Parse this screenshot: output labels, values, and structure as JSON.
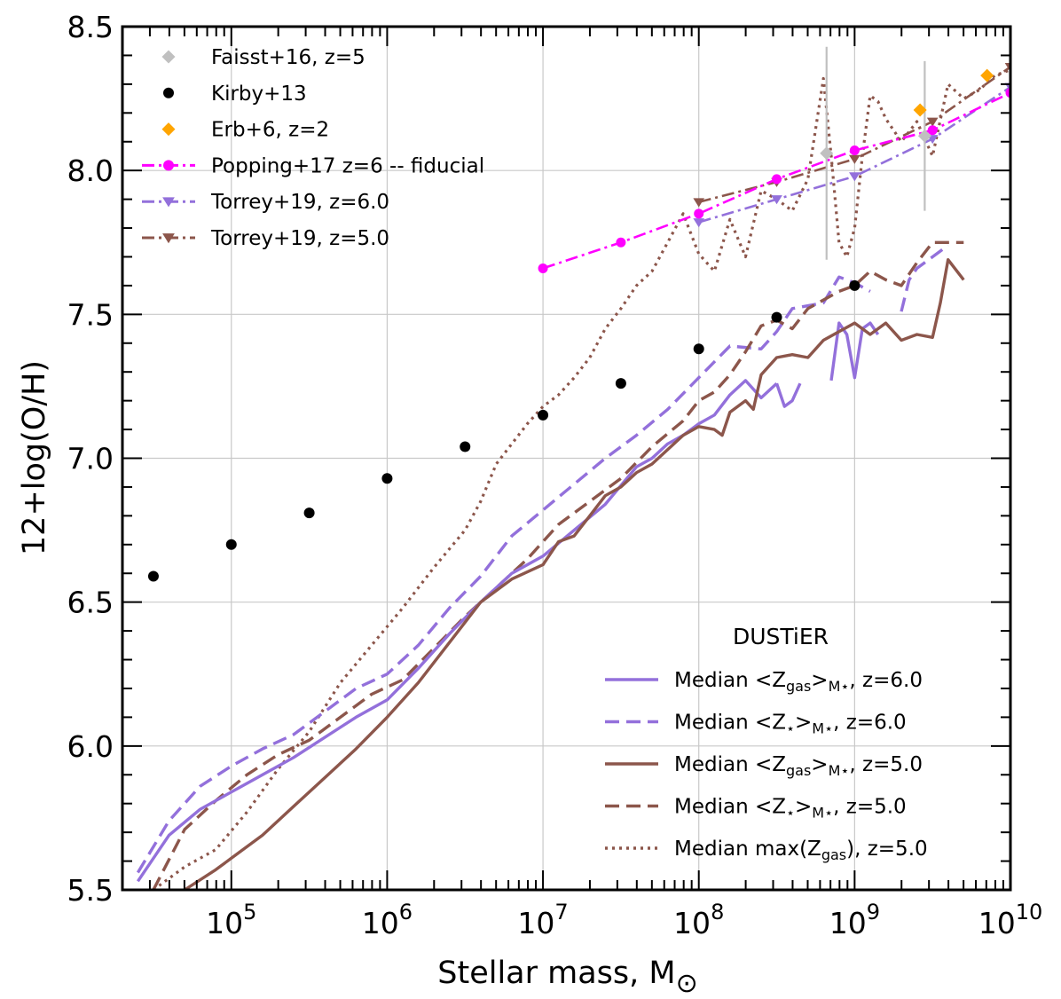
{
  "chart_data": {
    "type": "line",
    "title": "",
    "xlabel": "Stellar mass, M",
    "xlabel_sub": "⊙",
    "ylabel": "12+log(O/H)",
    "xscale": "log",
    "xlim": [
      20000,
      10000000000
    ],
    "ylim": [
      5.5,
      8.5
    ],
    "grid": true,
    "x_ticks": [
      {
        "value": 100000,
        "base": "10",
        "exp": "5"
      },
      {
        "value": 1000000,
        "base": "10",
        "exp": "6"
      },
      {
        "value": 10000000,
        "base": "10",
        "exp": "7"
      },
      {
        "value": 100000000,
        "base": "10",
        "exp": "8"
      },
      {
        "value": 1000000000,
        "base": "10",
        "exp": "9"
      },
      {
        "value": 10000000000,
        "base": "10",
        "exp": "10"
      }
    ],
    "y_ticks": [
      {
        "value": 5.5,
        "label": "5.5"
      },
      {
        "value": 6.0,
        "label": "6.0"
      },
      {
        "value": 6.5,
        "label": "6.5"
      },
      {
        "value": 7.0,
        "label": "7.0"
      },
      {
        "value": 7.5,
        "label": "7.5"
      },
      {
        "value": 8.0,
        "label": "8.0"
      },
      {
        "value": 8.5,
        "label": "8.5"
      }
    ],
    "legend_top": [
      {
        "label": "Faisst+16, z=5",
        "color": "#c0c0c0",
        "marker": "diamond",
        "line": "none"
      },
      {
        "label": "Kirby+13",
        "color": "#000000",
        "marker": "circle",
        "line": "none"
      },
      {
        "label": "Erb+6, z=2",
        "color": "#ffa500",
        "marker": "diamond",
        "line": "none"
      },
      {
        "label": "Popping+17 z=6 -- fiducial",
        "color": "#ff00ff",
        "marker": "circle",
        "line": "dashdot"
      },
      {
        "label": "Torrey+19, z=6.0",
        "color": "#9370db",
        "marker": "triangle-down",
        "line": "dashdot"
      },
      {
        "label": "Torrey+19, z=5.0",
        "color": "#8c564b",
        "marker": "triangle-down",
        "line": "dashdot"
      }
    ],
    "legend_bottom": {
      "title": "DUSTiER",
      "entries": [
        {
          "prefix": "Median <Z",
          "sub": "gas",
          "middle": ">",
          "sub2": "M⋆",
          "suffix": ", z=6.0",
          "color": "#9370db",
          "line": "solid"
        },
        {
          "prefix": "Median <Z",
          "sub": "⋆",
          "middle": ">",
          "sub2": "M⋆",
          "suffix": ", z=6.0",
          "color": "#9370db",
          "line": "dashed"
        },
        {
          "prefix": "Median <Z",
          "sub": "gas",
          "middle": ">",
          "sub2": "M⋆",
          "suffix": ", z=5.0",
          "color": "#8c564b",
          "line": "solid"
        },
        {
          "prefix": "Median <Z",
          "sub": "⋆",
          "middle": ">",
          "sub2": "M⋆",
          "suffix": ", z=5.0",
          "color": "#8c564b",
          "line": "dashed"
        },
        {
          "prefix": "Median max(Z",
          "sub": "gas",
          "middle": "),",
          "sub2": "",
          "suffix": "  z=5.0",
          "color": "#8c564b",
          "line": "dotted"
        }
      ]
    },
    "series": [
      {
        "name": "Kirby+13",
        "type": "scatter",
        "color": "#000000",
        "marker": "circle",
        "logx": [
          4.5,
          5.0,
          5.5,
          6.0,
          6.5,
          7.0,
          7.5,
          8.0,
          8.5,
          9.0
        ],
        "y": [
          6.59,
          6.7,
          6.81,
          6.93,
          7.04,
          7.15,
          7.26,
          7.38,
          7.49,
          7.6
        ]
      },
      {
        "name": "Faisst+16, z=5",
        "type": "scatter",
        "color": "#c0c0c0",
        "marker": "diamond",
        "logx": [
          8.82,
          9.45
        ],
        "y": [
          8.06,
          8.12
        ],
        "yerr": [
          0.37,
          0.26
        ]
      },
      {
        "name": "Erb+6, z=2",
        "type": "scatter",
        "color": "#ffa500",
        "marker": "diamond",
        "logx": [
          9.42,
          9.85
        ],
        "y": [
          8.21,
          8.33
        ]
      },
      {
        "name": "Popping+17 z=6 -- fiducial",
        "type": "line",
        "color": "#ff00ff",
        "marker": "circle",
        "line": "dashdot",
        "logx": [
          7.0,
          7.5,
          8.0,
          8.5,
          9.0,
          9.5,
          10.0
        ],
        "y": [
          7.66,
          7.75,
          7.85,
          7.97,
          8.07,
          8.14,
          8.27
        ]
      },
      {
        "name": "Torrey+19, z=6.0",
        "type": "line",
        "color": "#9370db",
        "marker": "triangle-down",
        "line": "dashdot",
        "logx": [
          8.0,
          8.5,
          9.0,
          9.5,
          10.0
        ],
        "y": [
          7.82,
          7.9,
          7.98,
          8.11,
          8.29
        ]
      },
      {
        "name": "Torrey+19, z=5.0",
        "type": "line",
        "color": "#8c564b",
        "marker": "triangle-down",
        "line": "dashdot",
        "logx": [
          8.0,
          8.5,
          9.0,
          9.5,
          10.0
        ],
        "y": [
          7.89,
          7.96,
          8.04,
          8.17,
          8.36
        ]
      },
      {
        "name": "Median <Zgas>M*, z=6.0",
        "type": "line",
        "color": "#9370db",
        "line": "solid",
        "segments": [
          {
            "logx": [
              4.4,
              4.6,
              4.8,
              5.0,
              5.2,
              5.4,
              5.6,
              5.8,
              6.0,
              6.2,
              6.4,
              6.6,
              6.8,
              7.0,
              7.2,
              7.4,
              7.6,
              7.7,
              7.8,
              7.9,
              8.0,
              8.1,
              8.2,
              8.3,
              8.4,
              8.5
            ],
            "y": [
              5.53,
              5.69,
              5.78,
              5.84,
              5.9,
              5.96,
              6.03,
              6.1,
              6.16,
              6.27,
              6.39,
              6.5,
              6.6,
              6.66,
              6.75,
              6.84,
              6.97,
              7.0,
              7.05,
              7.08,
              7.12,
              7.15,
              7.22,
              7.27,
              7.21,
              7.26
            ]
          },
          {
            "logx": [
              8.5,
              8.55,
              8.6,
              8.65
            ],
            "y": [
              7.26,
              7.18,
              7.2,
              7.26
            ]
          },
          {
            "logx": [
              8.85,
              8.9,
              8.95,
              9.0,
              9.05,
              9.1,
              9.15
            ],
            "y": [
              7.27,
              7.47,
              7.43,
              7.28,
              7.45,
              7.47,
              7.43
            ]
          }
        ]
      },
      {
        "name": "Median <Z*>M*, z=6.0",
        "type": "line",
        "color": "#9370db",
        "line": "dashed",
        "segments": [
          {
            "logx": [
              4.4,
              4.6,
              4.8,
              5.0,
              5.2,
              5.4,
              5.6,
              5.8,
              6.0,
              6.2,
              6.4,
              6.6,
              6.8,
              7.0,
              7.2,
              7.4,
              7.6,
              7.8,
              8.0,
              8.2,
              8.4,
              8.5,
              8.6,
              8.8,
              8.9,
              9.0,
              9.1
            ],
            "y": [
              5.56,
              5.74,
              5.86,
              5.93,
              5.99,
              6.04,
              6.12,
              6.2,
              6.25,
              6.35,
              6.48,
              6.59,
              6.73,
              6.82,
              6.91,
              7.0,
              7.08,
              7.17,
              7.28,
              7.39,
              7.38,
              7.44,
              7.52,
              7.54,
              7.63,
              7.61,
              7.58
            ]
          },
          {
            "logx": [
              9.3,
              9.35,
              9.4,
              9.5,
              9.6
            ],
            "y": [
              7.51,
              7.62,
              7.66,
              7.7,
              7.74
            ]
          }
        ]
      },
      {
        "name": "Median <Zgas>M*, z=5.0",
        "type": "line",
        "color": "#8c564b",
        "line": "solid",
        "segments": [
          {
            "logx": [
              4.7,
              4.9,
              5.0,
              5.2,
              5.4,
              5.6,
              5.8,
              6.0,
              6.2,
              6.4,
              6.6,
              6.8,
              7.0,
              7.1,
              7.2,
              7.3,
              7.4,
              7.5,
              7.6,
              7.7,
              7.8,
              7.9,
              8.0,
              8.1,
              8.15,
              8.2,
              8.3,
              8.35,
              8.4,
              8.5,
              8.6,
              8.7,
              8.8,
              8.9,
              9.0,
              9.1,
              9.2,
              9.3,
              9.4,
              9.5,
              9.55,
              9.6,
              9.7
            ],
            "y": [
              5.5,
              5.57,
              5.61,
              5.69,
              5.79,
              5.89,
              5.99,
              6.1,
              6.22,
              6.36,
              6.5,
              6.58,
              6.63,
              6.71,
              6.73,
              6.8,
              6.87,
              6.9,
              6.95,
              6.98,
              7.03,
              7.08,
              7.11,
              7.1,
              7.08,
              7.16,
              7.2,
              7.17,
              7.29,
              7.35,
              7.36,
              7.35,
              7.41,
              7.44,
              7.47,
              7.43,
              7.47,
              7.41,
              7.43,
              7.42,
              7.54,
              7.69,
              7.62
            ]
          }
        ]
      },
      {
        "name": "Median <Z*>M*, z=5.0",
        "type": "line",
        "color": "#8c564b",
        "line": "dashed",
        "segments": [
          {
            "logx": [
              4.5,
              4.7,
              4.9,
              5.1,
              5.3,
              5.5,
              5.7,
              5.9,
              6.1,
              6.3,
              6.5,
              6.7,
              6.9,
              7.1,
              7.3,
              7.5,
              7.7,
              7.9,
              8.0,
              8.1,
              8.2,
              8.3,
              8.4,
              8.5,
              8.6,
              8.7,
              8.8,
              8.9,
              9.0,
              9.1,
              9.2,
              9.3,
              9.4,
              9.5,
              9.6,
              9.7
            ],
            "y": [
              5.5,
              5.71,
              5.81,
              5.9,
              5.97,
              6.02,
              6.1,
              6.18,
              6.23,
              6.34,
              6.45,
              6.55,
              6.65,
              6.77,
              6.85,
              6.93,
              7.04,
              7.13,
              7.2,
              7.23,
              7.29,
              7.37,
              7.46,
              7.48,
              7.45,
              7.52,
              7.55,
              7.58,
              7.6,
              7.65,
              7.62,
              7.6,
              7.68,
              7.75,
              7.75,
              7.75
            ]
          }
        ]
      },
      {
        "name": "Median max(Zgas), z=5.0",
        "type": "line",
        "color": "#8c564b",
        "line": "dotted",
        "segments": [
          {
            "logx": [
              4.5,
              4.7,
              4.9,
              5.1,
              5.3,
              5.5,
              5.7,
              5.9,
              6.1,
              6.3,
              6.5,
              6.6,
              6.7,
              6.8,
              6.9,
              7.0,
              7.1,
              7.2,
              7.3,
              7.4,
              7.5,
              7.6,
              7.7,
              7.8,
              7.9,
              8.0,
              8.1,
              8.2,
              8.3,
              8.4,
              8.5,
              8.6,
              8.7,
              8.8,
              8.85,
              8.9,
              8.95,
              9.0,
              9.05,
              9.1,
              9.15,
              9.2,
              9.3,
              9.4,
              9.5,
              9.6,
              9.7,
              9.8,
              9.9,
              10.0
            ],
            "y": [
              5.5,
              5.58,
              5.64,
              5.77,
              5.92,
              6.05,
              6.22,
              6.35,
              6.48,
              6.62,
              6.75,
              6.85,
              6.98,
              7.05,
              7.12,
              7.18,
              7.22,
              7.28,
              7.35,
              7.45,
              7.52,
              7.6,
              7.65,
              7.75,
              7.85,
              7.71,
              7.65,
              7.83,
              7.7,
              7.93,
              7.9,
              7.86,
              7.97,
              8.32,
              8.05,
              7.75,
              7.7,
              7.8,
              8.05,
              8.26,
              8.24,
              8.18,
              8.1,
              8.17,
              8.05,
              8.3,
              8.25,
              8.28,
              8.33,
              8.35
            ]
          }
        ]
      }
    ]
  }
}
